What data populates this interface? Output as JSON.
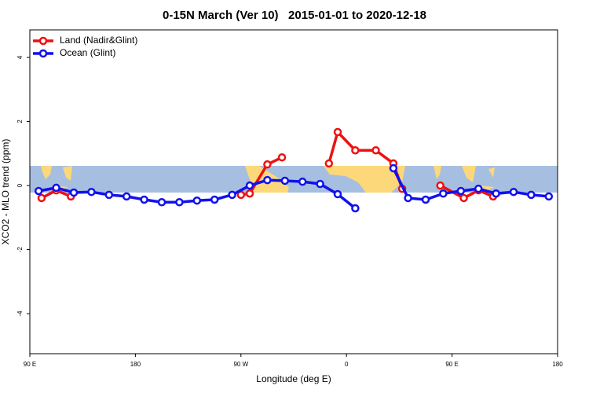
{
  "chart_data": {
    "type": "line",
    "title": "0-15N March (Ver 10)   2015-01-01 to 2020-12-18",
    "x_label": "Longitude (deg E)",
    "y_label": "XCO2 - MLO trend (ppm)",
    "xlim": [
      90,
      540
    ],
    "ylim": [
      -5.25,
      4.86
    ],
    "xticks": [
      {
        "value": 90,
        "label": "90 E"
      },
      {
        "value": 180,
        "label": "180"
      },
      {
        "value": 270,
        "label": "90 W"
      },
      {
        "value": 360,
        "label": "0"
      },
      {
        "value": 450,
        "label": "90 E"
      },
      {
        "value": 540,
        "label": "180"
      }
    ],
    "yticks": [
      4,
      2,
      0,
      -2,
      -4
    ],
    "legend": "top-left",
    "series": [
      {
        "name": "Land (Nadir&Glint)",
        "color": "#ee1111",
        "x": [
          100,
          112.5,
          125,
          200,
          270,
          277.5,
          292.5,
          305,
          325,
          345,
          352.5,
          367.5,
          385,
          400,
          407.5,
          425,
          440,
          460,
          472.5,
          485
        ],
        "values": [
          -0.39,
          -0.15,
          -0.34,
          null,
          -0.29,
          -0.25,
          0.66,
          0.88,
          null,
          0.69,
          1.67,
          1.1,
          1.1,
          0.69,
          -0.1,
          null,
          0,
          -0.39,
          -0.15,
          -0.34
        ]
      },
      {
        "name": "Ocean (Glint)",
        "color": "#1111ee",
        "x": [
          97.5,
          112.5,
          127.5,
          142.5,
          157.5,
          172.5,
          187.5,
          202.5,
          217.5,
          232.5,
          247.5,
          262.5,
          277.5,
          292.5,
          307.5,
          322.5,
          337.5,
          352.5,
          367.5,
          382.5,
          400,
          412.5,
          427.5,
          442.5,
          457.5,
          472.5,
          487.5,
          502.5,
          517.5,
          532.5
        ],
        "values": [
          -0.17,
          -0.07,
          -0.22,
          -0.2,
          -0.29,
          -0.34,
          -0.44,
          -0.52,
          -0.52,
          -0.47,
          -0.44,
          -0.29,
          0,
          0.17,
          0.15,
          0.12,
          0.05,
          -0.27,
          -0.71,
          null,
          0.54,
          -0.39,
          -0.44,
          -0.25,
          -0.17,
          -0.1,
          -0.25,
          -0.2,
          -0.29,
          -0.34
        ]
      }
    ]
  }
}
